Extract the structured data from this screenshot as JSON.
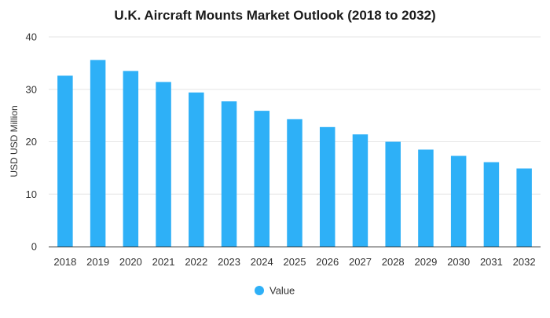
{
  "chart_data": {
    "type": "bar",
    "title": "U.K. Aircraft Mounts Market Outlook (2018 to 2032)",
    "xlabel": "",
    "ylabel": "USD USD Million",
    "categories": [
      "2018",
      "2019",
      "2020",
      "2021",
      "2022",
      "2023",
      "2024",
      "2025",
      "2026",
      "2027",
      "2028",
      "2029",
      "2030",
      "2031",
      "2032"
    ],
    "series": [
      {
        "name": "Value",
        "values": [
          32.6,
          35.6,
          33.5,
          31.4,
          29.4,
          27.7,
          25.9,
          24.3,
          22.8,
          21.4,
          20.0,
          18.5,
          17.3,
          16.1,
          14.9
        ]
      }
    ],
    "ylim": [
      0,
      40
    ],
    "yticks": [
      0,
      10,
      20,
      30,
      40
    ],
    "grid": true,
    "legend_position": "bottom-center",
    "colors": {
      "bar": "#2eb0f7",
      "grid": "#e6e6e6",
      "axis": "#333333",
      "text": "#333333",
      "title": "#1a1a1a"
    }
  }
}
